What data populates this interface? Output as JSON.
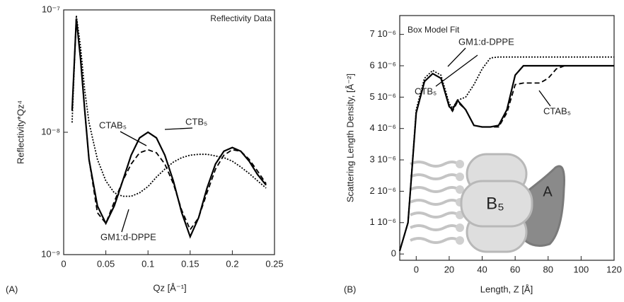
{
  "chart_data": [
    {
      "type": "line",
      "title": "Reflectivity Data",
      "x_label": "Qz [Å⁻¹]",
      "y_label": "Reflectivity*Qz⁴",
      "panel_label": "(A)",
      "log_y": true,
      "xlim": [
        0,
        0.25
      ],
      "ylim": [
        1e-09,
        1e-07
      ],
      "xticks": [
        0,
        0.05,
        0.1,
        0.15,
        0.2,
        0.25
      ],
      "yticks": [
        {
          "value": 1e-09,
          "label": "10⁻⁹"
        },
        {
          "value": 1e-08,
          "label": "10⁻⁸"
        },
        {
          "value": 1e-07,
          "label": "10⁻⁷"
        }
      ],
      "x": [
        0.01,
        0.015,
        0.02,
        0.025,
        0.03,
        0.04,
        0.05,
        0.06,
        0.07,
        0.08,
        0.09,
        0.1,
        0.11,
        0.12,
        0.13,
        0.14,
        0.15,
        0.16,
        0.17,
        0.18,
        0.19,
        0.2,
        0.21,
        0.22,
        0.23,
        0.24
      ],
      "series": [
        {
          "name": "CTB₅",
          "color": "#000000",
          "dash": "solid",
          "values": [
            1.5e-08,
            8.5e-08,
            4e-08,
            1.5e-08,
            6e-09,
            2.5e-09,
            1.8e-09,
            2.5e-09,
            4e-09,
            6.5e-09,
            9e-09,
            1e-08,
            9e-09,
            6.5e-09,
            4e-09,
            2.2e-09,
            1.4e-09,
            2e-09,
            3.5e-09,
            5.5e-09,
            7e-09,
            7.5e-09,
            7e-09,
            5.8e-09,
            4.5e-09,
            3.7e-09
          ]
        },
        {
          "name": "CTAB₅",
          "color": "#000000",
          "dash": "dashed",
          "values": [
            1.5e-08,
            8.5e-08,
            4e-08,
            1.5e-08,
            6e-09,
            2.2e-09,
            1.8e-09,
            2.7e-09,
            4e-09,
            5.5e-09,
            6.8e-09,
            7.2e-09,
            6.8e-09,
            5.5e-09,
            3.8e-09,
            2.3e-09,
            1.6e-09,
            2e-09,
            3.2e-09,
            5e-09,
            6.5e-09,
            7.2e-09,
            7e-09,
            6e-09,
            4.8e-09,
            3.8e-09
          ]
        },
        {
          "name": "GM1:d-DPPE",
          "color": "#000000",
          "dash": "dotted",
          "values": [
            1.2e-08,
            9e-08,
            5e-08,
            2.2e-08,
            1.2e-08,
            6e-09,
            4e-09,
            3.2e-09,
            3e-09,
            3e-09,
            3.2e-09,
            3.6e-09,
            4.3e-09,
            5e-09,
            5.7e-09,
            6.2e-09,
            6.5e-09,
            6.6e-09,
            6.6e-09,
            6.4e-09,
            6.2e-09,
            5.8e-09,
            5.2e-09,
            4.6e-09,
            4e-09,
            3.5e-09
          ]
        }
      ]
    },
    {
      "type": "line",
      "title": "Box Model Fit",
      "x_label": "Length, Z [Å]",
      "y_label": "Scattering Length Density, [Å⁻²]",
      "panel_label": "(B)",
      "log_y": false,
      "xlim": [
        -10,
        120
      ],
      "ylim": [
        -2e-07,
        7.6e-06
      ],
      "xticks": [
        0,
        20,
        40,
        60,
        80,
        100,
        120
      ],
      "yticks": [
        0,
        {
          "value": 1e-06,
          "label": "1 10⁻⁶"
        },
        {
          "value": 2e-06,
          "label": "2 10⁻⁶"
        },
        {
          "value": 3e-06,
          "label": "3 10⁻⁶"
        },
        {
          "value": 4e-06,
          "label": "4 10⁻⁶"
        },
        {
          "value": 5e-06,
          "label": "5 10⁻⁶"
        },
        {
          "value": 6e-06,
          "label": "6 10⁻⁶"
        },
        {
          "value": 7e-06,
          "label": "7 10⁻⁶"
        }
      ],
      "x": [
        -10,
        -5,
        0,
        5,
        10,
        15,
        20,
        22,
        25,
        30,
        35,
        40,
        45,
        50,
        55,
        60,
        65,
        70,
        75,
        80,
        85,
        90,
        100,
        110,
        120
      ],
      "series": [
        {
          "name": "CTB₅",
          "color": "#000000",
          "dash": "solid",
          "values": [
            1e-07,
            1e-06,
            4.5e-06,
            5.5e-06,
            5.75e-06,
            5.6e-06,
            4.7e-06,
            4.6e-06,
            4.9e-06,
            4.6e-06,
            4.1e-06,
            4.05e-06,
            4.05e-06,
            4.1e-06,
            4.6e-06,
            5.7e-06,
            6e-06,
            6e-06,
            6e-06,
            6e-06,
            6e-06,
            6e-06,
            6e-06,
            6e-06,
            6e-06
          ]
        },
        {
          "name": "CTAB₅",
          "color": "#000000",
          "dash": "dashed",
          "values": [
            1e-07,
            1e-06,
            4.5e-06,
            5.5e-06,
            5.75e-06,
            5.6e-06,
            4.7e-06,
            4.55e-06,
            4.85e-06,
            4.6e-06,
            4.1e-06,
            4.05e-06,
            4.05e-06,
            4.05e-06,
            4.5e-06,
            5.4e-06,
            5.45e-06,
            5.45e-06,
            5.45e-06,
            5.6e-06,
            5.9e-06,
            6e-06,
            6e-06,
            6e-06,
            6e-06
          ]
        },
        {
          "name": "GM1:d-DPPE",
          "color": "#000000",
          "dash": "dotted",
          "values": [
            1e-07,
            1e-06,
            4.6e-06,
            5.6e-06,
            5.85e-06,
            5.7e-06,
            4.8e-06,
            4.65e-06,
            4.9e-06,
            5e-06,
            5.4e-06,
            5.9e-06,
            6.25e-06,
            6.28e-06,
            6.28e-06,
            6.28e-06,
            6.28e-06,
            6.28e-06,
            6.28e-06,
            6.28e-06,
            6.28e-06,
            6.28e-06,
            6.28e-06,
            6.28e-06,
            6.28e-06
          ]
        }
      ],
      "diagram_labels": [
        "B₅",
        "A"
      ]
    }
  ]
}
